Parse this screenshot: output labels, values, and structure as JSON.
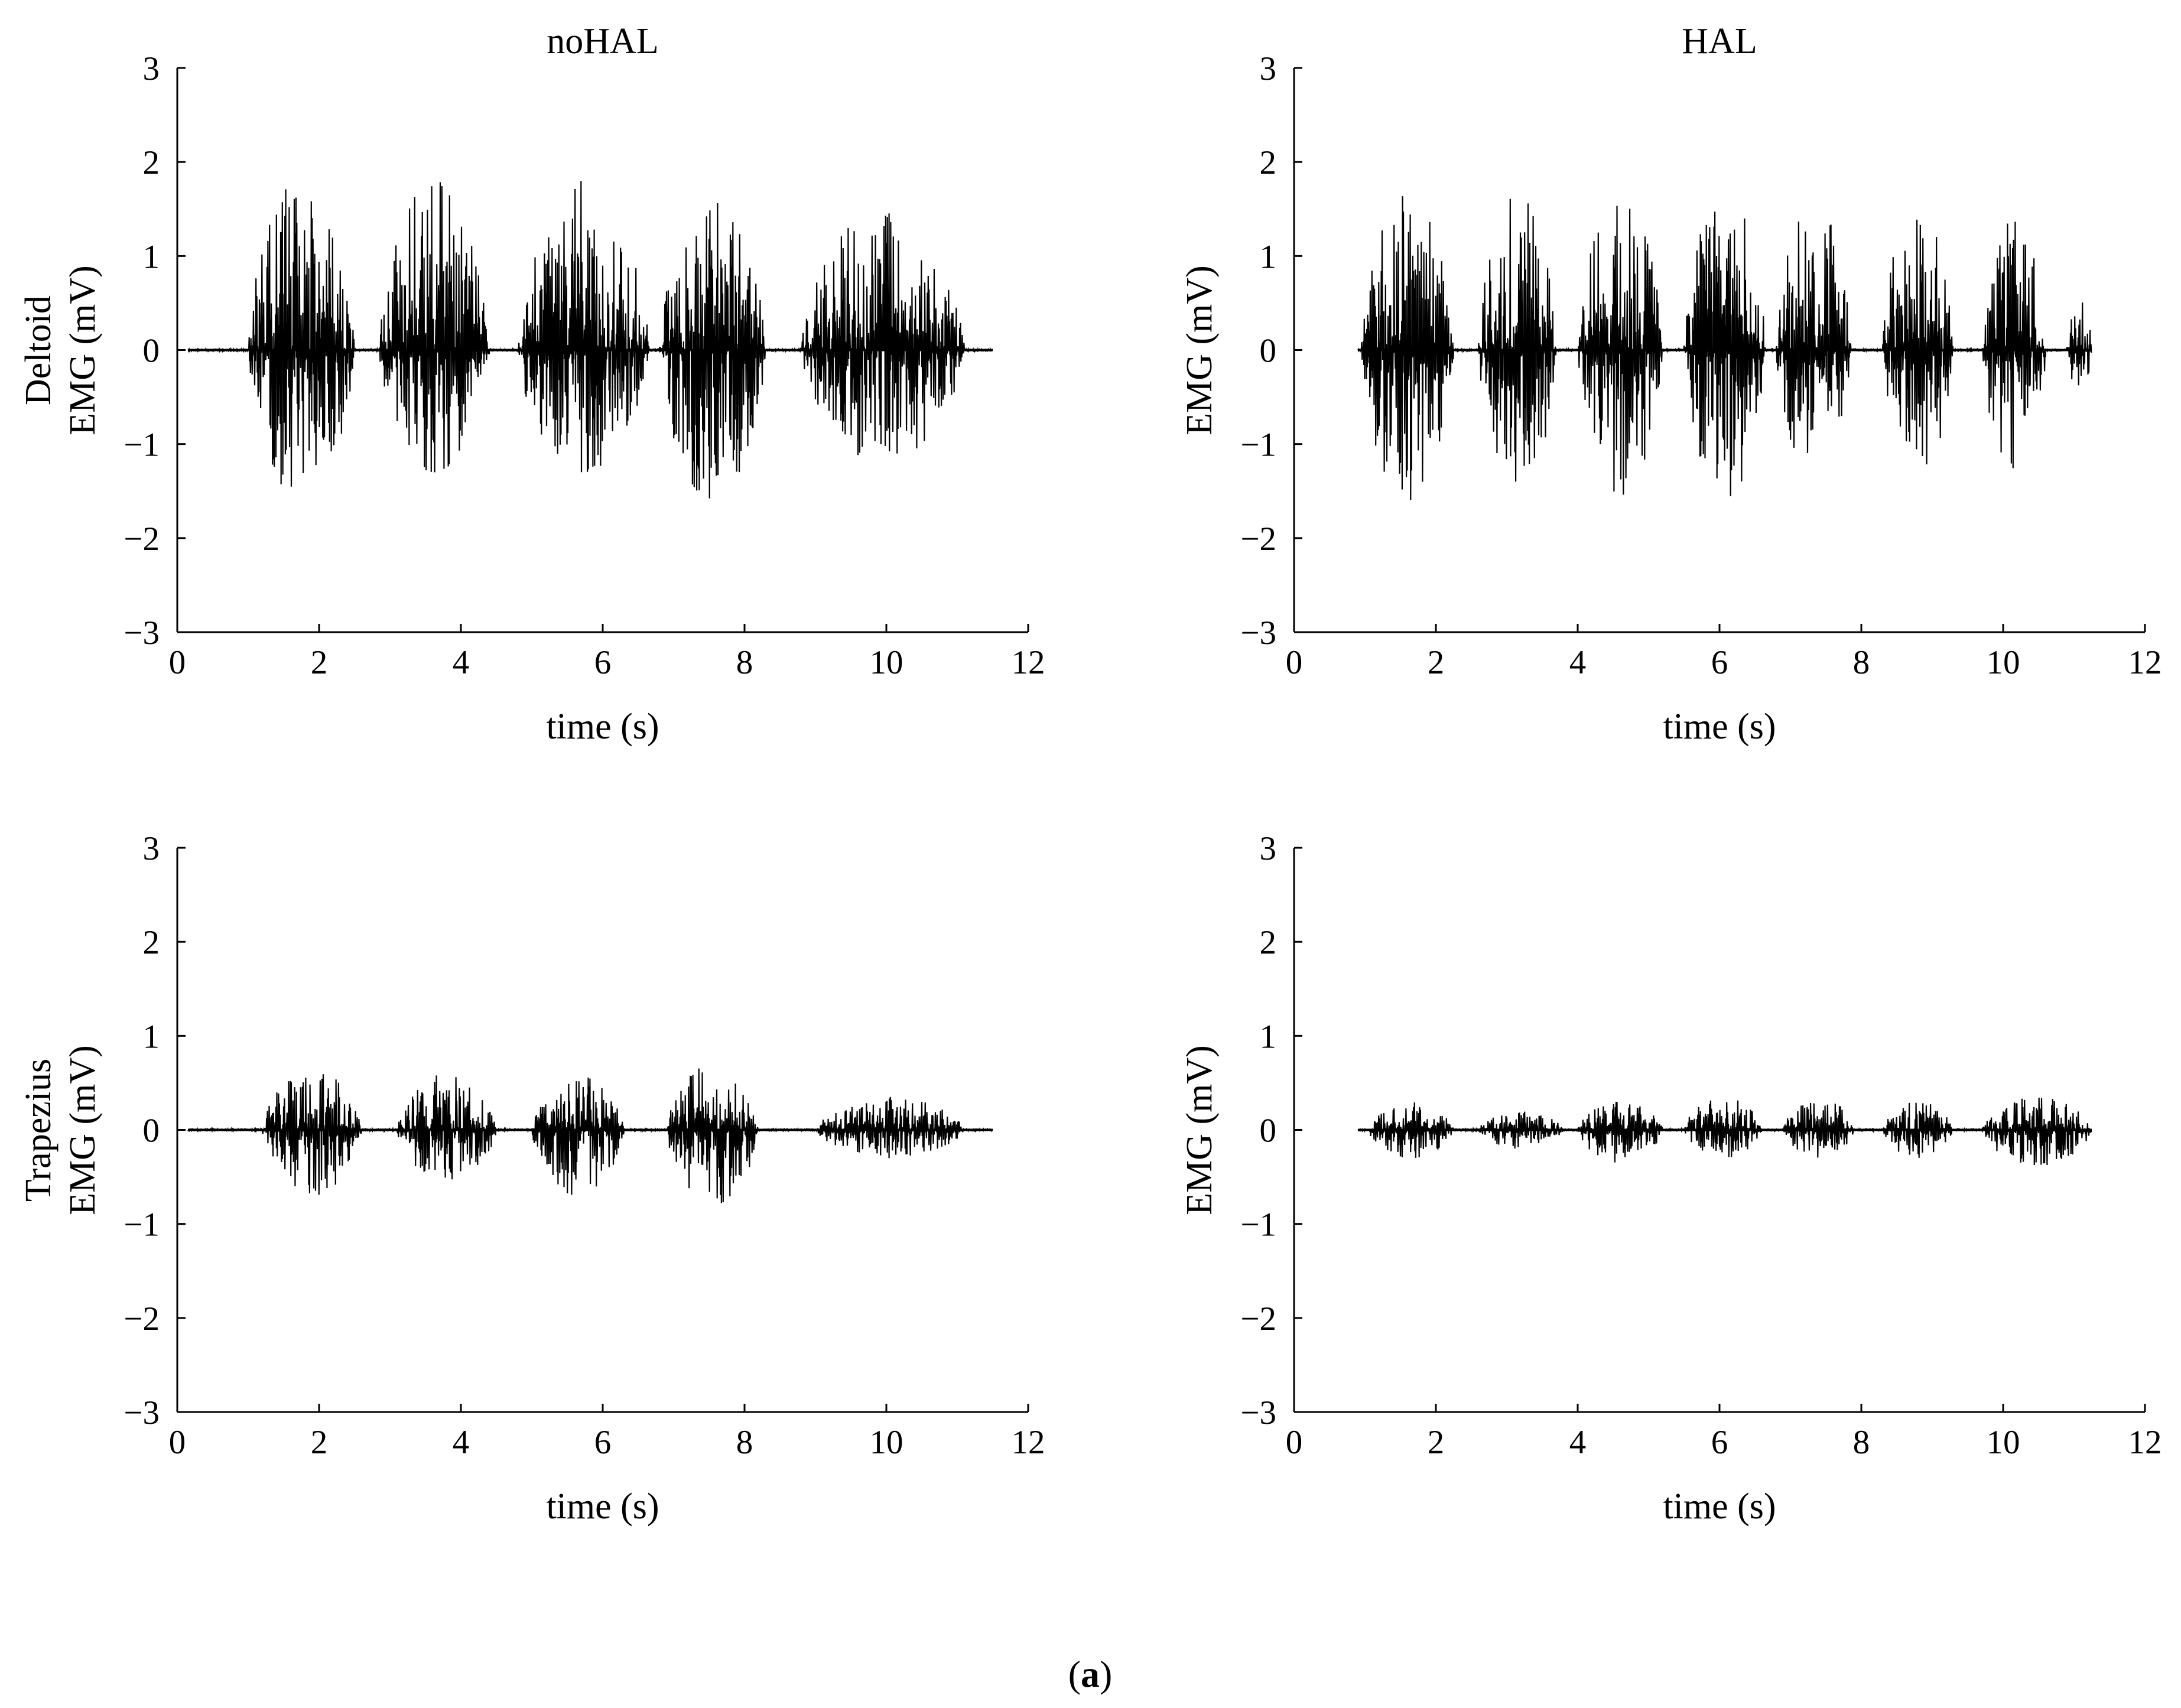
{
  "figure": {
    "caption": "(a)",
    "caption_parts": [
      "(",
      "a",
      ")"
    ]
  },
  "colors": {
    "trace": "#000000",
    "axis": "#000000",
    "background": "#ffffff"
  },
  "chart_data": [
    {
      "type": "line",
      "title": "noHAL",
      "row_label": "Deltoid",
      "xlabel": "time (s)",
      "ylabel": "EMG (mV)",
      "xlim": [
        0,
        12
      ],
      "ylim": [
        -3,
        3
      ],
      "xticks": [
        "0",
        "2",
        "4",
        "6",
        "8",
        "10",
        "12"
      ],
      "yticks": [
        "3",
        "2",
        "1",
        "0",
        "−1",
        "−2",
        "−3"
      ],
      "grid": false,
      "series": [
        {
          "signal_span": [
            0.15,
            11.5
          ],
          "bursts": [
            {
              "start": 1.0,
              "end": 2.5,
              "peak_pos": 1.85,
              "peak_neg": -1.6
            },
            {
              "start": 2.85,
              "end": 4.4,
              "peak_pos": 1.8,
              "peak_neg": -1.3
            },
            {
              "start": 4.8,
              "end": 6.65,
              "peak_pos": 1.8,
              "peak_neg": -1.3
            },
            {
              "start": 6.8,
              "end": 8.3,
              "peak_pos": 1.6,
              "peak_neg": -1.6
            },
            {
              "start": 8.8,
              "end": 11.1,
              "peak_pos": 1.5,
              "peak_neg": -1.2
            }
          ]
        }
      ]
    },
    {
      "type": "line",
      "title": "HAL",
      "row_label": "",
      "xlabel": "time (s)",
      "ylabel": "EMG (mV)",
      "xlim": [
        0,
        12
      ],
      "ylim": [
        -3,
        3
      ],
      "xticks": [
        "0",
        "2",
        "4",
        "6",
        "8",
        "10",
        "12"
      ],
      "yticks": [
        "3",
        "2",
        "1",
        "0",
        "−1",
        "−2",
        "−3"
      ],
      "grid": false,
      "series": [
        {
          "signal_span": [
            0.9,
            11.25
          ],
          "bursts": [
            {
              "start": 0.95,
              "end": 2.25,
              "peak_pos": 1.65,
              "peak_neg": -1.6
            },
            {
              "start": 2.6,
              "end": 3.7,
              "peak_pos": 1.65,
              "peak_neg": -1.55
            },
            {
              "start": 4.0,
              "end": 5.2,
              "peak_pos": 1.65,
              "peak_neg": -1.55
            },
            {
              "start": 5.5,
              "end": 6.65,
              "peak_pos": 1.7,
              "peak_neg": -1.6
            },
            {
              "start": 6.8,
              "end": 7.85,
              "peak_pos": 1.6,
              "peak_neg": -1.35
            },
            {
              "start": 8.3,
              "end": 9.3,
              "peak_pos": 1.6,
              "peak_neg": -1.35
            },
            {
              "start": 9.7,
              "end": 10.6,
              "peak_pos": 1.4,
              "peak_neg": -1.3
            },
            {
              "start": 10.9,
              "end": 11.25,
              "peak_pos": 0.6,
              "peak_neg": -0.45
            }
          ]
        }
      ]
    },
    {
      "type": "line",
      "title": "",
      "row_label": "Trapezius",
      "xlabel": "time (s)",
      "ylabel": "EMG (mV)",
      "xlim": [
        0,
        12
      ],
      "ylim": [
        -3,
        3
      ],
      "xticks": [
        "0",
        "2",
        "4",
        "6",
        "8",
        "10",
        "12"
      ],
      "yticks": [
        "3",
        "2",
        "1",
        "0",
        "−1",
        "−2",
        "−3"
      ],
      "grid": false,
      "series": [
        {
          "signal_span": [
            0.15,
            11.5
          ],
          "bursts": [
            {
              "start": 1.2,
              "end": 2.6,
              "peak_pos": 0.65,
              "peak_neg": -0.7
            },
            {
              "start": 3.1,
              "end": 4.5,
              "peak_pos": 0.6,
              "peak_neg": -0.55
            },
            {
              "start": 5.0,
              "end": 6.3,
              "peak_pos": 0.6,
              "peak_neg": -0.7
            },
            {
              "start": 6.9,
              "end": 8.2,
              "peak_pos": 0.7,
              "peak_neg": -0.8
            },
            {
              "start": 9.0,
              "end": 11.1,
              "peak_pos": 0.35,
              "peak_neg": -0.3
            }
          ]
        }
      ]
    },
    {
      "type": "line",
      "title": "",
      "row_label": "",
      "xlabel": "time (s)",
      "ylabel": "EMG (mV)",
      "xlim": [
        0,
        12
      ],
      "ylim": [
        -3,
        3
      ],
      "xticks": [
        "0",
        "2",
        "4",
        "6",
        "8",
        "10",
        "12"
      ],
      "yticks": [
        "3",
        "2",
        "1",
        "0",
        "−1",
        "−2",
        "−3"
      ],
      "grid": false,
      "series": [
        {
          "signal_span": [
            0.9,
            11.25
          ],
          "bursts": [
            {
              "start": 1.05,
              "end": 2.25,
              "peak_pos": 0.3,
              "peak_neg": -0.3
            },
            {
              "start": 2.6,
              "end": 3.8,
              "peak_pos": 0.2,
              "peak_neg": -0.2
            },
            {
              "start": 4.0,
              "end": 5.2,
              "peak_pos": 0.3,
              "peak_neg": -0.35
            },
            {
              "start": 5.5,
              "end": 6.6,
              "peak_pos": 0.35,
              "peak_neg": -0.3
            },
            {
              "start": 6.9,
              "end": 7.9,
              "peak_pos": 0.35,
              "peak_neg": -0.3
            },
            {
              "start": 8.3,
              "end": 9.3,
              "peak_pos": 0.3,
              "peak_neg": -0.3
            },
            {
              "start": 9.7,
              "end": 11.25,
              "peak_pos": 0.35,
              "peak_neg": -0.4
            }
          ]
        }
      ]
    }
  ]
}
